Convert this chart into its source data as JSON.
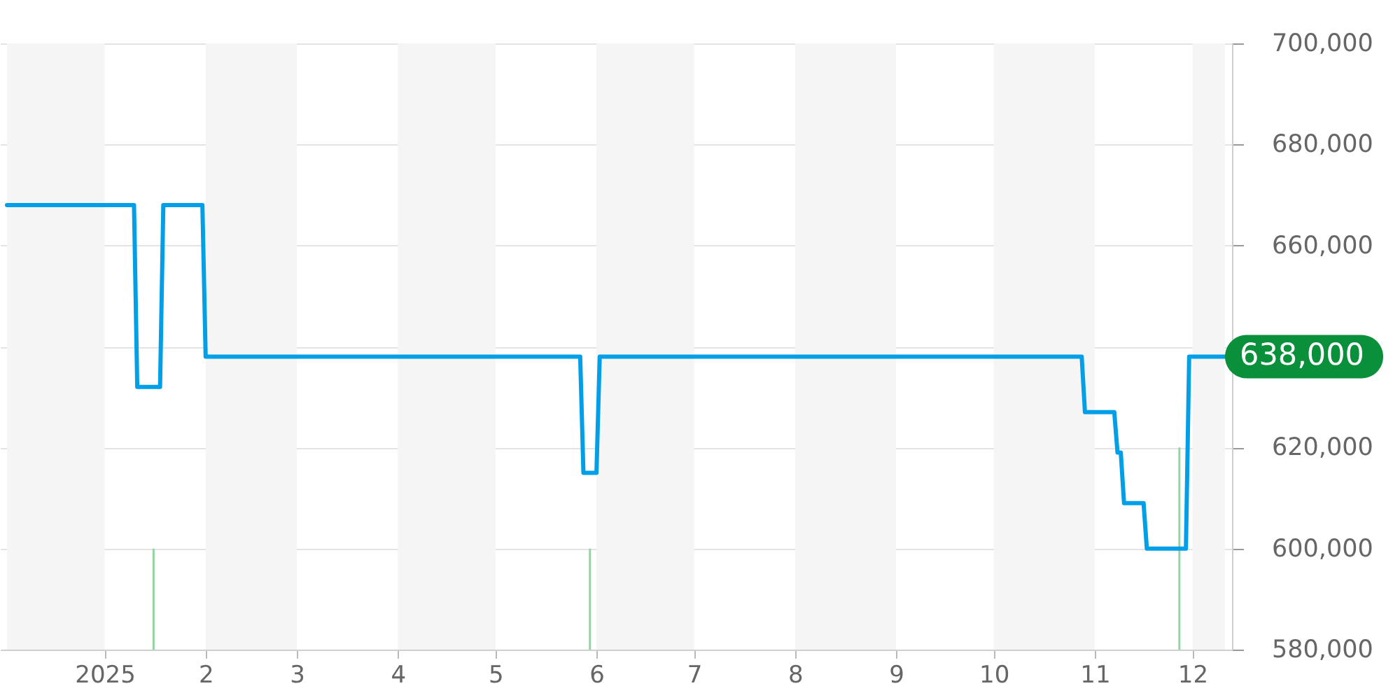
{
  "chart_data": {
    "type": "line",
    "xlim": [
      "2024-12-02",
      "2025-12-11"
    ],
    "xticks": [
      {
        "value": "2025-01-01",
        "label": "2025"
      },
      {
        "value": "2025-02-01",
        "label": "2"
      },
      {
        "value": "2025-03-01",
        "label": "3"
      },
      {
        "value": "2025-04-01",
        "label": "4"
      },
      {
        "value": "2025-05-01",
        "label": "5"
      },
      {
        "value": "2025-06-01",
        "label": "6"
      },
      {
        "value": "2025-07-01",
        "label": "7"
      },
      {
        "value": "2025-08-01",
        "label": "8"
      },
      {
        "value": "2025-09-01",
        "label": "9"
      },
      {
        "value": "2025-10-01",
        "label": "10"
      },
      {
        "value": "2025-11-01",
        "label": "11"
      },
      {
        "value": "2025-12-01",
        "label": "12"
      }
    ],
    "ylim": [
      580000,
      700000
    ],
    "yticks": [
      {
        "value": 580000,
        "label": "580,000"
      },
      {
        "value": 600000,
        "label": "600,000"
      },
      {
        "value": 620000,
        "label": "620,000"
      },
      {
        "value": 640000,
        "label": null
      },
      {
        "value": 660000,
        "label": "660,000"
      },
      {
        "value": 680000,
        "label": "680,000"
      },
      {
        "value": 700000,
        "label": "700,000"
      }
    ],
    "grid": "y",
    "bands": [
      {
        "axis": "x",
        "from": "2024-12-02",
        "to": "2025-01-01",
        "color": "#f5f5f5"
      },
      {
        "axis": "x",
        "from": "2025-02-01",
        "to": "2025-03-01",
        "color": "#f5f5f5"
      },
      {
        "axis": "x",
        "from": "2025-04-01",
        "to": "2025-05-01",
        "color": "#f5f5f5"
      },
      {
        "axis": "x",
        "from": "2025-06-01",
        "to": "2025-07-01",
        "color": "#f5f5f5"
      },
      {
        "axis": "x",
        "from": "2025-08-01",
        "to": "2025-09-01",
        "color": "#f5f5f5"
      },
      {
        "axis": "x",
        "from": "2025-10-01",
        "to": "2025-11-01",
        "color": "#f5f5f5"
      },
      {
        "axis": "x",
        "from": "2025-12-01",
        "to": "2025-12-11",
        "color": "#f5f5f5"
      }
    ],
    "series": [
      {
        "type": "bar",
        "color": "#8fd69f",
        "x": [
          "2025-01-16",
          "2025-05-30",
          "2025-11-27"
        ],
        "values": [
          600000,
          600000,
          620000
        ]
      },
      {
        "color": "#009fe8",
        "x": [
          "2024-12-02",
          "2025-01-10",
          "2025-01-11",
          "2025-01-18",
          "2025-01-19",
          "2025-01-31",
          "2025-02-01",
          "2025-05-27",
          "2025-05-28",
          "2025-06-01",
          "2025-06-02",
          "2025-10-28",
          "2025-10-29",
          "2025-11-07",
          "2025-11-08",
          "2025-11-09",
          "2025-11-10",
          "2025-11-16",
          "2025-11-17",
          "2025-11-29",
          "2025-11-30",
          "2025-12-11"
        ],
        "values": [
          668000,
          668000,
          632000,
          632000,
          668000,
          668000,
          638000,
          638000,
          615000,
          615000,
          638000,
          638000,
          627000,
          627000,
          619000,
          619000,
          609000,
          609000,
          600000,
          600000,
          638000,
          638000
        ]
      }
    ],
    "annotations": [
      {
        "text": "638,000",
        "x": "2025-12-11",
        "y": 638000
      }
    ]
  }
}
